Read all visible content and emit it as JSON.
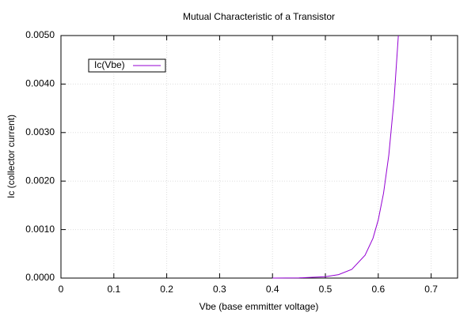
{
  "chart_data": {
    "type": "line",
    "title": "Mutual Characteristic of a Transistor",
    "x_label": "Vbe (base emmitter voltage)",
    "y_label": "Ic (collector current)",
    "x": [
      0.4,
      0.45,
      0.5,
      0.525,
      0.55,
      0.575,
      0.59,
      0.6,
      0.61,
      0.62,
      0.63,
      0.638
    ],
    "series": [
      {
        "name": "Ic(Vbe)",
        "color": "#9400d3",
        "values": [
          7e-07,
          4.3e-06,
          2.8e-05,
          7.2e-05,
          0.00018,
          0.00047,
          0.00082,
          0.0012,
          0.00175,
          0.00254,
          0.0037,
          0.005
        ]
      }
    ],
    "xlim": [
      0,
      0.75
    ],
    "xticks": [
      0,
      0.1,
      0.2,
      0.3,
      0.4,
      0.5,
      0.6,
      0.7
    ],
    "ylim": [
      0,
      0.005
    ],
    "yticks": [
      {
        "value": 0,
        "label": "0.0000"
      },
      {
        "value": 0.001,
        "label": "0.0010"
      },
      {
        "value": 0.002,
        "label": "0.0020"
      },
      {
        "value": 0.003,
        "label": "0.0030"
      },
      {
        "value": 0.004,
        "label": "0.0040"
      },
      {
        "value": 0.005,
        "label": "0.0050"
      }
    ],
    "grid": true,
    "legend": "top-left"
  }
}
